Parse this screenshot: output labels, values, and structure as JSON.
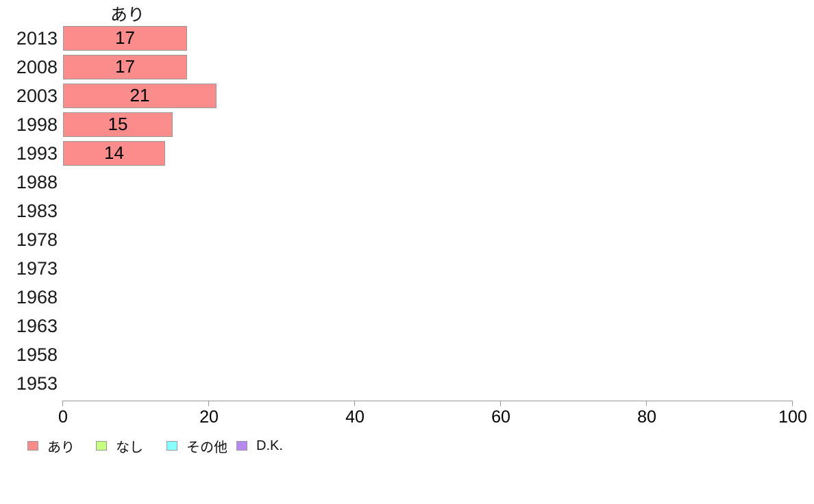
{
  "chart_data": {
    "type": "bar",
    "orientation": "horizontal",
    "title": "あり",
    "categories": [
      "2013",
      "2008",
      "2003",
      "1998",
      "1993",
      "1988",
      "1983",
      "1978",
      "1973",
      "1968",
      "1963",
      "1958",
      "1953"
    ],
    "series": [
      {
        "name": "あり",
        "color": "#FA8C8C",
        "values": [
          17,
          17,
          21,
          15,
          14,
          null,
          null,
          null,
          null,
          null,
          null,
          null,
          null
        ]
      }
    ],
    "value_labels_shown": true,
    "xlim": [
      0,
      100
    ],
    "x_ticks": [
      0,
      20,
      40,
      60,
      80,
      100
    ],
    "grid": false,
    "axis_color": "#999999",
    "bar_border_color": "#999999",
    "legend": {
      "position": "bottom",
      "entries": [
        {
          "label": "あり",
          "color": "#FA8C8C"
        },
        {
          "label": "なし",
          "color": "#C6FF80"
        },
        {
          "label": "その他",
          "color": "#88FFFF"
        },
        {
          "label": "D.K.",
          "color": "#B689F0"
        }
      ]
    }
  }
}
